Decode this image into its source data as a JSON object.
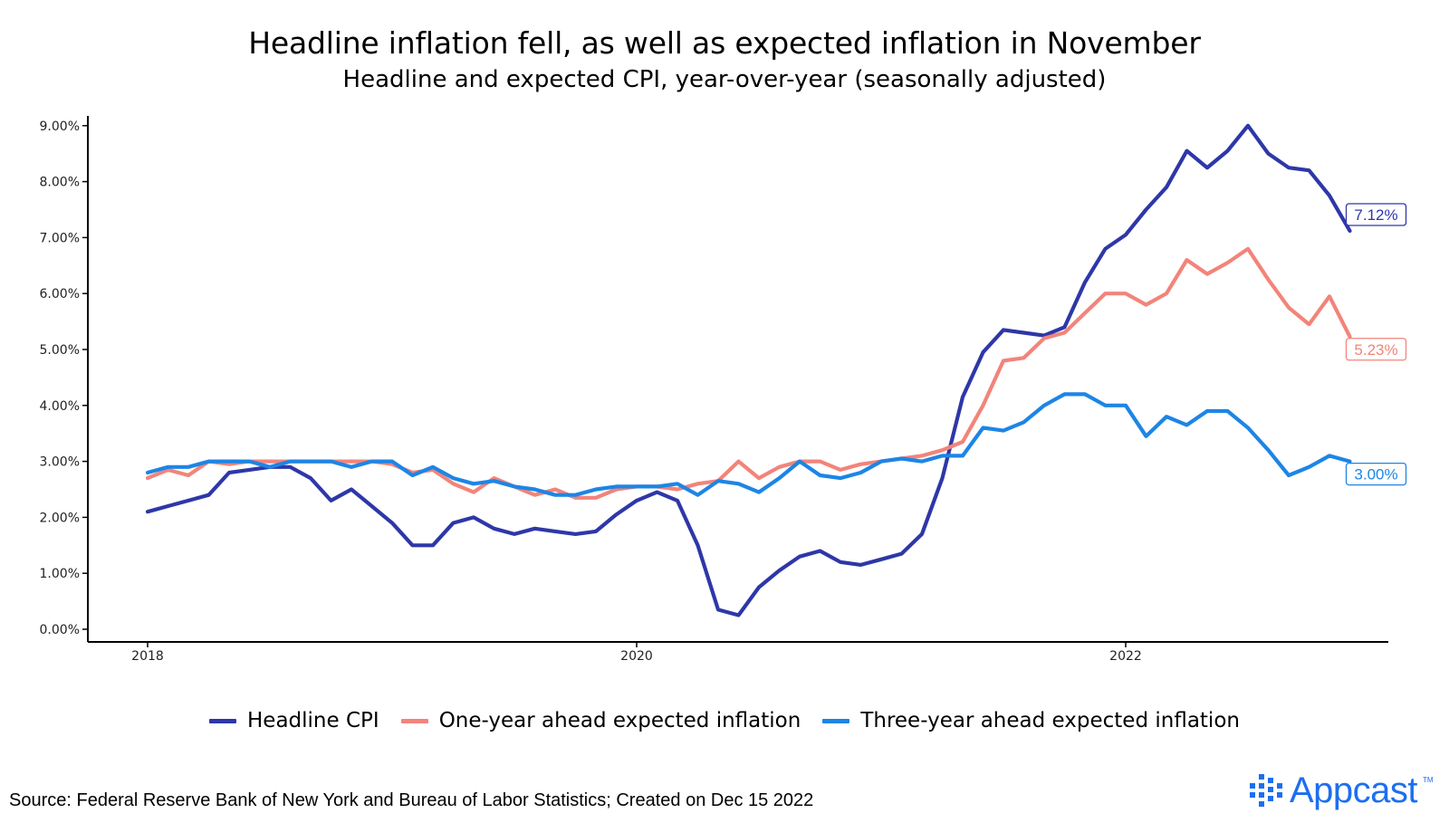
{
  "chart_data": {
    "type": "line",
    "title": "Headline inflation fell, as well as expected inflation in November",
    "subtitle": "Headline and expected CPI, year-over-year (seasonally adjusted)",
    "xlabel": "",
    "ylabel": "",
    "x_ticks": [
      "2018",
      "2020",
      "2022"
    ],
    "y_ticks": [
      "0.00%",
      "1.00%",
      "2.00%",
      "3.00%",
      "4.00%",
      "5.00%",
      "6.00%",
      "7.00%",
      "8.00%",
      "9.00%"
    ],
    "x_range": [
      "2017-11",
      "2023-03"
    ],
    "ylim": [
      -0.2,
      9.4
    ],
    "grid": false,
    "legend_position": "bottom",
    "start_month": "2018-01",
    "series": [
      {
        "name": "Headline CPI",
        "color": "#2e37a8",
        "end_label": "7.12%",
        "values": [
          2.1,
          2.2,
          2.3,
          2.4,
          2.8,
          2.85,
          2.9,
          2.9,
          2.7,
          2.3,
          2.5,
          2.2,
          1.9,
          1.5,
          1.5,
          1.9,
          2.0,
          1.8,
          1.7,
          1.8,
          1.75,
          1.7,
          1.75,
          2.05,
          2.3,
          2.45,
          2.3,
          1.5,
          0.35,
          0.25,
          0.75,
          1.05,
          1.3,
          1.4,
          1.2,
          1.15,
          1.25,
          1.35,
          1.7,
          2.7,
          4.15,
          4.95,
          5.35,
          5.3,
          5.25,
          5.4,
          6.2,
          6.8,
          7.05,
          7.5,
          7.9,
          8.55,
          8.25,
          8.55,
          9.0,
          8.5,
          8.25,
          8.2,
          7.75,
          7.12
        ]
      },
      {
        "name": "One-year ahead expected inflation",
        "color": "#f2847a",
        "end_label": "5.23%",
        "values": [
          2.7,
          2.85,
          2.75,
          3.0,
          2.95,
          3.0,
          3.0,
          3.0,
          3.0,
          3.0,
          3.0,
          3.0,
          2.95,
          2.8,
          2.85,
          2.6,
          2.45,
          2.7,
          2.55,
          2.4,
          2.5,
          2.35,
          2.35,
          2.5,
          2.55,
          2.55,
          2.5,
          2.6,
          2.65,
          3.0,
          2.7,
          2.9,
          3.0,
          3.0,
          2.85,
          2.95,
          3.0,
          3.05,
          3.1,
          3.2,
          3.35,
          4.0,
          4.8,
          4.85,
          5.2,
          5.3,
          5.65,
          6.0,
          6.0,
          5.8,
          6.0,
          6.6,
          6.35,
          6.55,
          6.8,
          6.25,
          5.75,
          5.45,
          5.95,
          5.23
        ]
      },
      {
        "name": "Three-year ahead expected inflation",
        "color": "#1d85e6",
        "end_label": "3.00%",
        "values": [
          2.8,
          2.9,
          2.9,
          3.0,
          3.0,
          3.0,
          2.9,
          3.0,
          3.0,
          3.0,
          2.9,
          3.0,
          3.0,
          2.75,
          2.9,
          2.7,
          2.6,
          2.65,
          2.55,
          2.5,
          2.4,
          2.4,
          2.5,
          2.55,
          2.55,
          2.55,
          2.6,
          2.4,
          2.65,
          2.6,
          2.45,
          2.7,
          3.0,
          2.75,
          2.7,
          2.8,
          3.0,
          3.05,
          3.0,
          3.1,
          3.1,
          3.6,
          3.55,
          3.7,
          4.0,
          4.2,
          4.2,
          4.0,
          4.0,
          3.45,
          3.8,
          3.65,
          3.9,
          3.9,
          3.6,
          3.2,
          2.75,
          2.9,
          3.1,
          3.0
        ]
      }
    ],
    "source": "Source: Federal Reserve Bank of New York and Bureau of Labor Statistics; Created on Dec 15 2022",
    "logo": "Appcast",
    "logo_mark": "TM"
  }
}
